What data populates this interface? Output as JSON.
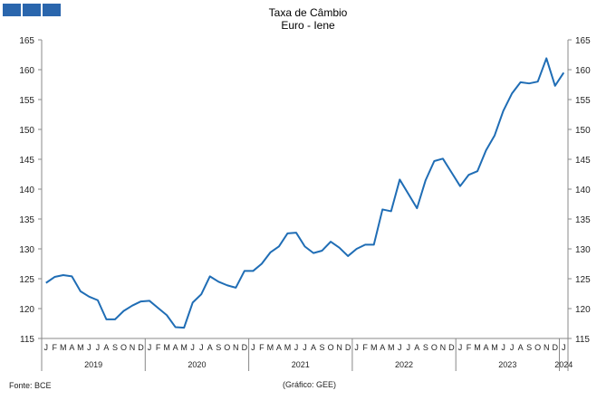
{
  "logo": {
    "blocks": 3,
    "color": "#2a66ad"
  },
  "chart_data": {
    "type": "line",
    "title": "Taxa de Câmbio",
    "subtitle": "Euro - Iene",
    "xlabel": "",
    "ylabel": "",
    "ylim": [
      115,
      165
    ],
    "y_ticks": [
      115,
      120,
      125,
      130,
      135,
      140,
      145,
      150,
      155,
      160,
      165
    ],
    "y_axis_both_sides": true,
    "grid": false,
    "line_color": "#1f6db5",
    "month_labels": [
      "J",
      "F",
      "M",
      "A",
      "M",
      "J",
      "J",
      "A",
      "S",
      "O",
      "N",
      "D"
    ],
    "years": [
      "2019",
      "2020",
      "2021",
      "2022",
      "2023",
      "2024"
    ],
    "series": [
      {
        "x_start": "2019-01",
        "values": [
          124.3,
          125.3,
          125.6,
          125.4,
          122.9,
          122.0,
          121.4,
          118.2,
          118.2,
          119.6,
          120.5,
          121.2,
          121.3,
          120.1,
          118.9,
          116.9,
          116.8,
          121.0,
          122.4,
          125.4,
          124.5,
          123.9,
          123.5,
          126.3,
          126.3,
          127.5,
          129.4,
          130.4,
          132.6,
          132.7,
          130.4,
          129.3,
          129.7,
          131.2,
          130.2,
          128.8,
          130.0,
          130.7,
          130.7,
          136.6,
          136.3,
          141.6,
          139.2,
          136.8,
          141.5,
          144.7,
          145.1,
          142.8,
          140.5,
          142.4,
          143.0,
          146.5,
          149.0,
          153.1,
          156.0,
          157.9,
          157.7,
          158.0,
          161.9,
          157.3,
          159.5
        ]
      }
    ]
  },
  "footer": {
    "source": "Fonte: BCE",
    "credit": "(Gráfico: GEE)"
  }
}
